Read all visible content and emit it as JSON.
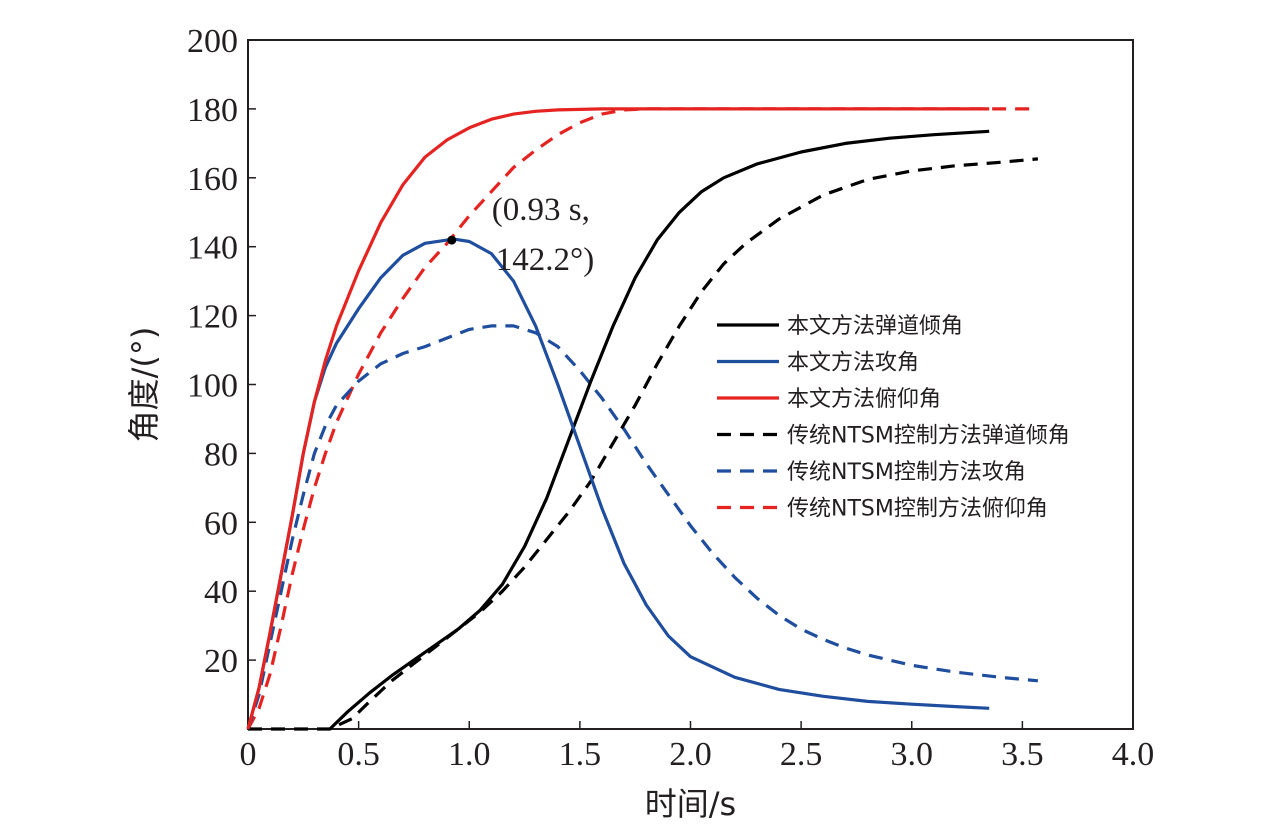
{
  "chart_data": {
    "type": "line",
    "xlabel": "时间/s",
    "ylabel": "角度/(°)",
    "xlim": [
      0,
      4.0
    ],
    "ylim": [
      0,
      200
    ],
    "grid": false,
    "legend_position": "right",
    "x_ticks": [
      {
        "value": 0,
        "label": "0"
      },
      {
        "value": 0.5,
        "label": "0.5"
      },
      {
        "value": 1.0,
        "label": "1.0"
      },
      {
        "value": 1.5,
        "label": "1.5"
      },
      {
        "value": 2.0,
        "label": "2.0"
      },
      {
        "value": 2.5,
        "label": "2.5"
      },
      {
        "value": 3.0,
        "label": "3.0"
      },
      {
        "value": 3.5,
        "label": "3.5"
      },
      {
        "value": 4.0,
        "label": "4.0"
      }
    ],
    "y_ticks": [
      {
        "value": 20,
        "label": "20"
      },
      {
        "value": 40,
        "label": "40"
      },
      {
        "value": 60,
        "label": "60"
      },
      {
        "value": 80,
        "label": "80"
      },
      {
        "value": 100,
        "label": "100"
      },
      {
        "value": 120,
        "label": "120"
      },
      {
        "value": 140,
        "label": "140"
      },
      {
        "value": 160,
        "label": "160"
      },
      {
        "value": 180,
        "label": "180"
      },
      {
        "value": 200,
        "label": "200"
      }
    ],
    "series": [
      {
        "name": "本文方法弹道倾角",
        "color": "#000000",
        "dash": "solid",
        "points": [
          [
            0.37,
            0
          ],
          [
            0.45,
            5
          ],
          [
            0.55,
            10.5
          ],
          [
            0.65,
            15.5
          ],
          [
            0.75,
            20
          ],
          [
            0.85,
            24.5
          ],
          [
            0.95,
            29
          ],
          [
            1.05,
            34.5
          ],
          [
            1.15,
            42
          ],
          [
            1.25,
            53
          ],
          [
            1.35,
            67
          ],
          [
            1.45,
            84
          ],
          [
            1.55,
            101
          ],
          [
            1.65,
            117
          ],
          [
            1.75,
            131
          ],
          [
            1.85,
            142
          ],
          [
            1.95,
            150
          ],
          [
            2.05,
            156
          ],
          [
            2.15,
            160
          ],
          [
            2.3,
            164
          ],
          [
            2.5,
            167.5
          ],
          [
            2.7,
            170
          ],
          [
            2.9,
            171.5
          ],
          [
            3.1,
            172.5
          ],
          [
            3.35,
            173.5
          ]
        ]
      },
      {
        "name": "本文方法攻角",
        "color": "#1f4e9e",
        "dash": "solid",
        "points": [
          [
            0,
            0
          ],
          [
            0.05,
            12
          ],
          [
            0.1,
            28
          ],
          [
            0.15,
            45
          ],
          [
            0.2,
            62
          ],
          [
            0.25,
            80
          ],
          [
            0.3,
            95
          ],
          [
            0.35,
            105
          ],
          [
            0.4,
            112
          ],
          [
            0.5,
            122
          ],
          [
            0.6,
            131
          ],
          [
            0.7,
            137.5
          ],
          [
            0.8,
            141
          ],
          [
            0.93,
            142.2
          ],
          [
            1.0,
            141.5
          ],
          [
            1.1,
            138
          ],
          [
            1.2,
            130
          ],
          [
            1.3,
            117
          ],
          [
            1.4,
            100
          ],
          [
            1.5,
            82
          ],
          [
            1.6,
            64
          ],
          [
            1.7,
            48
          ],
          [
            1.8,
            36
          ],
          [
            1.9,
            27
          ],
          [
            2.0,
            21
          ],
          [
            2.2,
            15
          ],
          [
            2.4,
            11.5
          ],
          [
            2.6,
            9.5
          ],
          [
            2.8,
            8
          ],
          [
            3.0,
            7.2
          ],
          [
            3.2,
            6.5
          ],
          [
            3.35,
            6
          ]
        ]
      },
      {
        "name": "本文方法俯仰角",
        "color": "#e52421",
        "dash": "solid",
        "points": [
          [
            0,
            0
          ],
          [
            0.05,
            12
          ],
          [
            0.1,
            28
          ],
          [
            0.15,
            45
          ],
          [
            0.2,
            62
          ],
          [
            0.25,
            80
          ],
          [
            0.3,
            95
          ],
          [
            0.35,
            107
          ],
          [
            0.4,
            117
          ],
          [
            0.5,
            133
          ],
          [
            0.6,
            147
          ],
          [
            0.7,
            158
          ],
          [
            0.8,
            166
          ],
          [
            0.9,
            171
          ],
          [
            1.0,
            174.5
          ],
          [
            1.1,
            177
          ],
          [
            1.2,
            178.5
          ],
          [
            1.3,
            179.3
          ],
          [
            1.4,
            179.7
          ],
          [
            1.6,
            180
          ],
          [
            2.0,
            180
          ],
          [
            3.0,
            180
          ],
          [
            3.35,
            180
          ]
        ]
      },
      {
        "name": "传统NTSM控制方法弹道倾角",
        "color": "#000000",
        "dash": "dashed",
        "points": [
          [
            0,
            0
          ],
          [
            0.1,
            0
          ],
          [
            0.2,
            0
          ],
          [
            0.3,
            0
          ],
          [
            0.37,
            0
          ],
          [
            0.47,
            3
          ],
          [
            0.55,
            8
          ],
          [
            0.65,
            14
          ],
          [
            0.75,
            19
          ],
          [
            0.85,
            24
          ],
          [
            0.95,
            29
          ],
          [
            1.05,
            34
          ],
          [
            1.15,
            40
          ],
          [
            1.25,
            47
          ],
          [
            1.35,
            55
          ],
          [
            1.45,
            63
          ],
          [
            1.55,
            72
          ],
          [
            1.65,
            83
          ],
          [
            1.75,
            94
          ],
          [
            1.85,
            106
          ],
          [
            1.95,
            117
          ],
          [
            2.05,
            127
          ],
          [
            2.15,
            135
          ],
          [
            2.25,
            141
          ],
          [
            2.4,
            148
          ],
          [
            2.6,
            155
          ],
          [
            2.8,
            159.5
          ],
          [
            3.0,
            162
          ],
          [
            3.2,
            163.5
          ],
          [
            3.4,
            164.5
          ],
          [
            3.57,
            165.5
          ]
        ]
      },
      {
        "name": "传统NTSM控制方法攻角",
        "color": "#1f4e9e",
        "dash": "dashed",
        "points": [
          [
            0,
            0
          ],
          [
            0.05,
            10
          ],
          [
            0.1,
            25
          ],
          [
            0.15,
            40
          ],
          [
            0.2,
            55
          ],
          [
            0.25,
            68
          ],
          [
            0.3,
            80
          ],
          [
            0.35,
            88
          ],
          [
            0.4,
            94
          ],
          [
            0.5,
            101
          ],
          [
            0.6,
            106
          ],
          [
            0.7,
            109
          ],
          [
            0.8,
            111
          ],
          [
            0.9,
            113.5
          ],
          [
            1.0,
            116
          ],
          [
            1.1,
            117
          ],
          [
            1.2,
            117
          ],
          [
            1.3,
            115
          ],
          [
            1.4,
            111
          ],
          [
            1.5,
            104
          ],
          [
            1.6,
            96
          ],
          [
            1.7,
            87
          ],
          [
            1.8,
            77
          ],
          [
            1.9,
            68
          ],
          [
            2.0,
            59
          ],
          [
            2.1,
            51
          ],
          [
            2.2,
            44
          ],
          [
            2.3,
            38
          ],
          [
            2.4,
            33
          ],
          [
            2.5,
            29
          ],
          [
            2.6,
            26
          ],
          [
            2.7,
            23.5
          ],
          [
            2.8,
            21.5
          ],
          [
            2.9,
            20
          ],
          [
            3.0,
            18.5
          ],
          [
            3.2,
            16.5
          ],
          [
            3.4,
            15
          ],
          [
            3.57,
            14
          ]
        ]
      },
      {
        "name": "传统NTSM控制方法俯仰角",
        "color": "#e52421",
        "dash": "dashed",
        "points": [
          [
            0,
            0
          ],
          [
            0.05,
            6
          ],
          [
            0.1,
            16
          ],
          [
            0.15,
            30
          ],
          [
            0.2,
            45
          ],
          [
            0.25,
            58
          ],
          [
            0.3,
            70
          ],
          [
            0.35,
            80
          ],
          [
            0.4,
            89
          ],
          [
            0.5,
            103
          ],
          [
            0.6,
            115
          ],
          [
            0.7,
            125
          ],
          [
            0.8,
            134
          ],
          [
            0.9,
            141
          ],
          [
            1.0,
            149
          ],
          [
            1.1,
            156
          ],
          [
            1.2,
            163
          ],
          [
            1.3,
            168
          ],
          [
            1.4,
            172.5
          ],
          [
            1.5,
            176
          ],
          [
            1.6,
            178.5
          ],
          [
            1.7,
            179.7
          ],
          [
            1.8,
            180
          ],
          [
            2.0,
            180
          ],
          [
            3.0,
            180
          ],
          [
            3.57,
            180
          ]
        ]
      }
    ],
    "annotation": {
      "point": [
        0.93,
        142.2
      ],
      "line1": "(0.93 s,",
      "line2": "142.2°)"
    }
  }
}
